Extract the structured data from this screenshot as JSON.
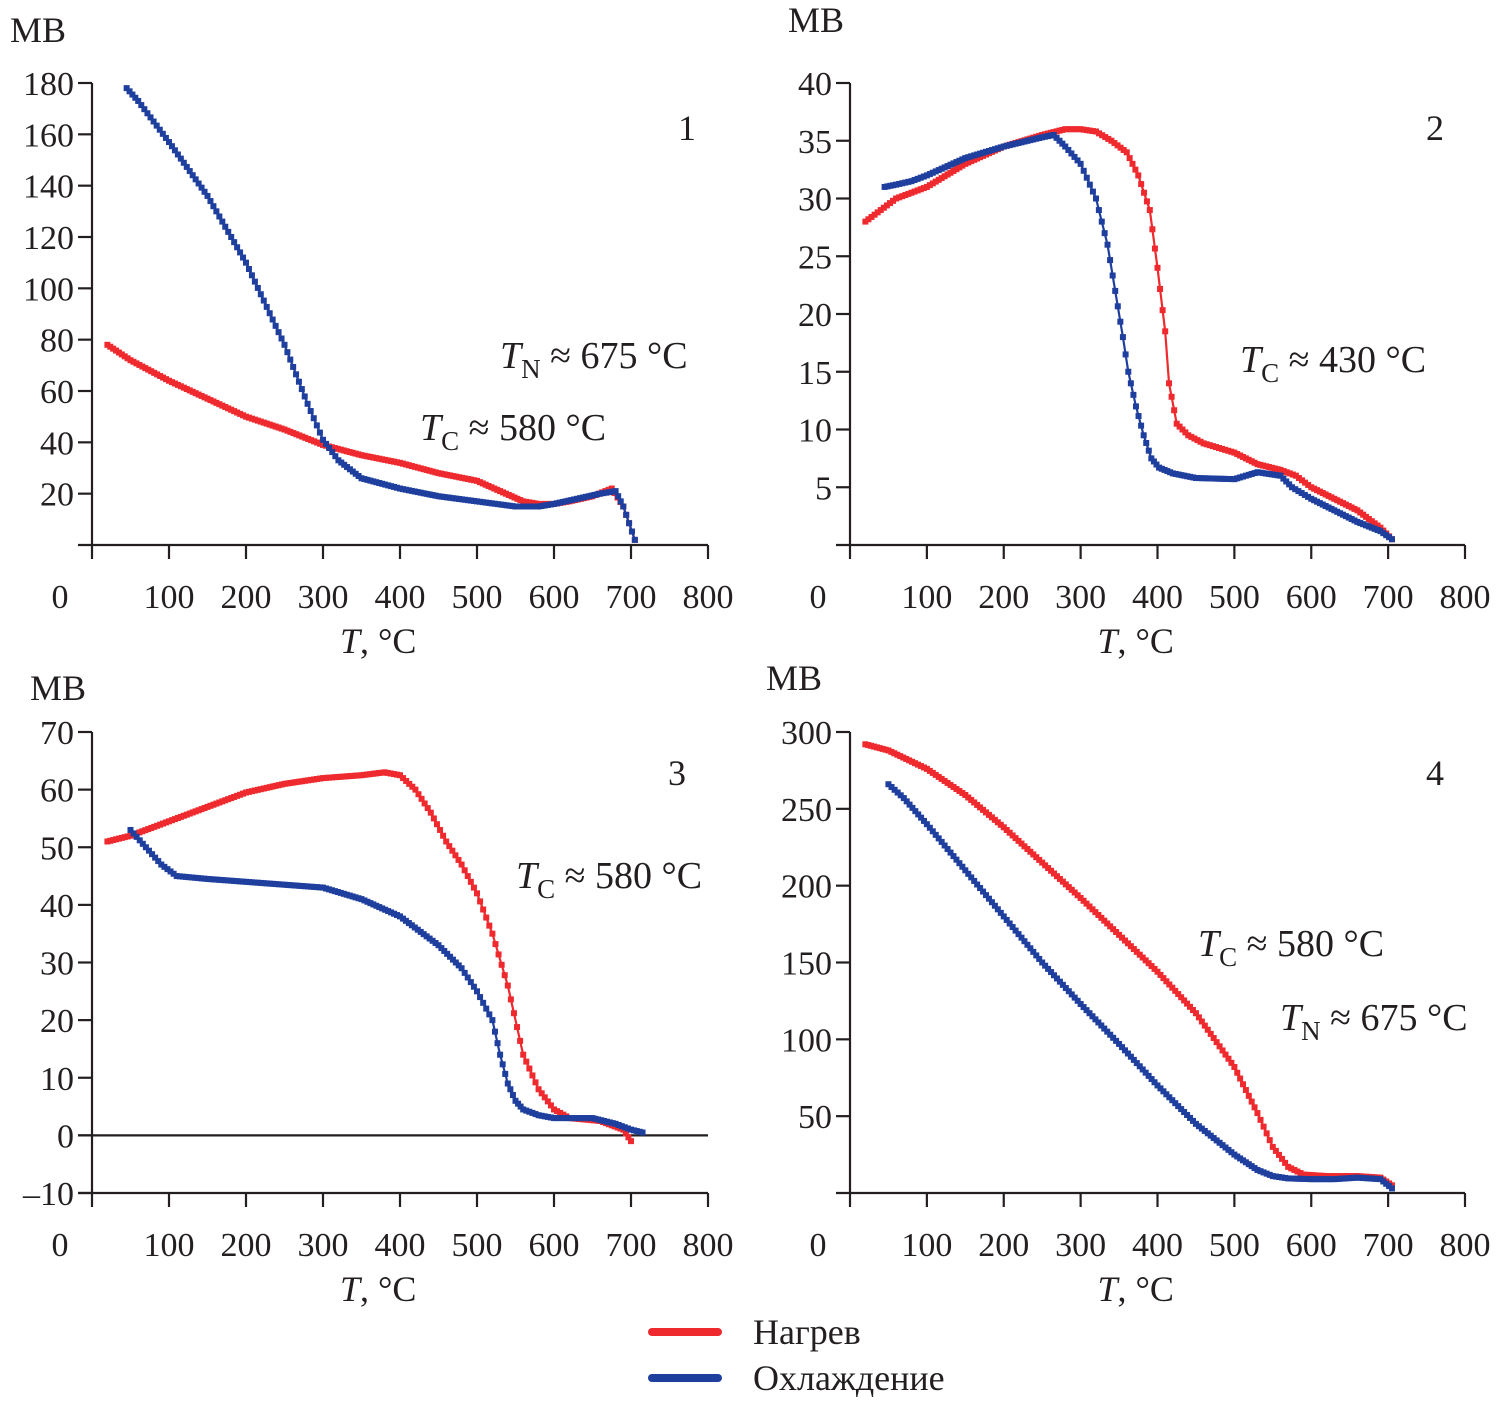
{
  "colors": {
    "heating": "#ee2a2f",
    "cooling": "#1f3f9e",
    "axis": "#231f20"
  },
  "legend": [
    {
      "label": "Нагрев",
      "series": "heating"
    },
    {
      "label": "Охлаждение",
      "series": "cooling"
    }
  ],
  "chart_data": [
    {
      "type": "line",
      "panel": "1",
      "ylabel": "MB",
      "xlabel_italic": "T",
      "xlabel_rest": ", °C",
      "xlim": [
        0,
        800
      ],
      "ylim": [
        0,
        180
      ],
      "xticks": [
        "0",
        "100",
        "200",
        "300",
        "400",
        "500",
        "600",
        "700",
        "800"
      ],
      "xtick_values": [
        0,
        100,
        200,
        300,
        400,
        500,
        600,
        700,
        800
      ],
      "yticks": [
        "20",
        "40",
        "60",
        "80",
        "100",
        "120",
        "140",
        "160",
        "180"
      ],
      "ytick_values": [
        20,
        40,
        60,
        80,
        100,
        120,
        140,
        160,
        180
      ],
      "zero_line": false,
      "annotations": [
        {
          "main": "T",
          "sub": "N",
          "rest": " ≈ 675 °C",
          "pos": "upper-right"
        },
        {
          "main": "T",
          "sub": "C",
          "rest": " ≈ 580 °C",
          "pos": "right"
        }
      ],
      "series": [
        {
          "name": "Нагрев",
          "key": "heating",
          "x": [
            20,
            50,
            100,
            150,
            200,
            250,
            300,
            350,
            400,
            450,
            500,
            530,
            560,
            580,
            600,
            620,
            650,
            675,
            690,
            705
          ],
          "y": [
            78,
            72,
            64,
            57,
            50,
            45,
            39,
            35,
            32,
            28,
            25,
            21,
            17,
            16,
            16,
            17,
            19,
            22,
            15,
            2
          ]
        },
        {
          "name": "Охлаждение",
          "key": "cooling",
          "x": [
            45,
            60,
            100,
            150,
            200,
            250,
            280,
            300,
            320,
            350,
            400,
            450,
            500,
            550,
            580,
            600,
            630,
            660,
            680,
            690,
            705
          ],
          "y": [
            178,
            173,
            157,
            136,
            110,
            78,
            55,
            41,
            33,
            26,
            22,
            19,
            17,
            15,
            15,
            16,
            18,
            20,
            21,
            15,
            2
          ]
        }
      ]
    },
    {
      "type": "line",
      "panel": "2",
      "ylabel": "MB",
      "xlabel_italic": "T",
      "xlabel_rest": ", °C",
      "xlim": [
        0,
        800
      ],
      "ylim": [
        0,
        40
      ],
      "xticks": [
        "0",
        "100",
        "200",
        "300",
        "400",
        "500",
        "600",
        "700",
        "800"
      ],
      "xtick_values": [
        0,
        100,
        200,
        300,
        400,
        500,
        600,
        700,
        800
      ],
      "yticks": [
        "5",
        "10",
        "15",
        "20",
        "25",
        "30",
        "35",
        "40"
      ],
      "ytick_values": [
        5,
        10,
        15,
        20,
        25,
        30,
        35,
        40
      ],
      "zero_line": false,
      "annotations": [
        {
          "main": "T",
          "sub": "C",
          "rest": " ≈ 430 °C",
          "pos": "right"
        }
      ],
      "series": [
        {
          "name": "Нагрев",
          "key": "heating",
          "x": [
            20,
            40,
            60,
            80,
            100,
            150,
            200,
            250,
            280,
            300,
            320,
            340,
            360,
            375,
            390,
            400,
            410,
            415,
            425,
            440,
            460,
            500,
            530,
            560,
            580,
            600,
            630,
            660,
            690,
            705
          ],
          "y": [
            28,
            29,
            30,
            30.5,
            31,
            33,
            34.5,
            35.5,
            36,
            36,
            35.8,
            35,
            34,
            32,
            29,
            24,
            18.5,
            14,
            10.5,
            9.5,
            8.8,
            8,
            7,
            6.5,
            6,
            5,
            4,
            3,
            1.5,
            0.5
          ]
        },
        {
          "name": "Охлаждение",
          "key": "cooling",
          "x": [
            45,
            60,
            80,
            100,
            150,
            200,
            250,
            265,
            280,
            300,
            320,
            335,
            345,
            355,
            362,
            372,
            382,
            392,
            402,
            420,
            450,
            500,
            530,
            560,
            575,
            600,
            630,
            660,
            690,
            705
          ],
          "y": [
            31,
            31.2,
            31.5,
            32,
            33.5,
            34.5,
            35.3,
            35.5,
            34.5,
            33,
            30,
            26,
            22,
            18,
            15,
            12,
            9.5,
            7.5,
            6.7,
            6.2,
            5.8,
            5.7,
            6.3,
            6,
            5,
            4,
            3,
            2,
            1.2,
            0.5
          ]
        }
      ]
    },
    {
      "type": "line",
      "panel": "3",
      "ylabel": "MB",
      "xlabel_italic": "T",
      "xlabel_rest": ", °C",
      "xlim": [
        0,
        800
      ],
      "ylim": [
        -10,
        70
      ],
      "xticks": [
        "0",
        "100",
        "200",
        "300",
        "400",
        "500",
        "600",
        "700",
        "800"
      ],
      "xtick_values": [
        0,
        100,
        200,
        300,
        400,
        500,
        600,
        700,
        800
      ],
      "yticks": [
        "–10",
        "0",
        "10",
        "20",
        "30",
        "40",
        "50",
        "60",
        "70"
      ],
      "ytick_values": [
        -10,
        0,
        10,
        20,
        30,
        40,
        50,
        60,
        70
      ],
      "zero_line": true,
      "annotations": [
        {
          "main": "T",
          "sub": "C",
          "rest": " ≈ 580 °C",
          "pos": "right"
        }
      ],
      "series": [
        {
          "name": "Нагрев",
          "key": "heating",
          "x": [
            20,
            50,
            100,
            150,
            200,
            250,
            300,
            350,
            380,
            400,
            420,
            440,
            460,
            480,
            500,
            520,
            540,
            560,
            580,
            600,
            620,
            660,
            690,
            700
          ],
          "y": [
            51,
            52,
            54.5,
            57,
            59.5,
            61,
            62,
            62.5,
            63,
            62.5,
            60,
            56,
            51,
            47,
            42,
            35,
            26,
            14,
            8,
            4.5,
            3,
            2.5,
            1,
            -1
          ]
        },
        {
          "name": "Охлаждение",
          "key": "cooling",
          "x": [
            50,
            70,
            90,
            110,
            150,
            200,
            250,
            300,
            350,
            400,
            450,
            480,
            500,
            520,
            530,
            540,
            550,
            560,
            580,
            600,
            650,
            680,
            700,
            715
          ],
          "y": [
            53,
            50,
            47,
            45,
            44.5,
            44,
            43.5,
            43,
            41,
            38,
            33,
            29,
            25,
            20,
            14,
            9,
            6,
            4.5,
            3.5,
            3,
            3,
            2,
            1,
            0.5
          ]
        }
      ]
    },
    {
      "type": "line",
      "panel": "4",
      "ylabel": "MB",
      "xlabel_italic": "T",
      "xlabel_rest": ", °C",
      "xlim": [
        0,
        800
      ],
      "ylim": [
        0,
        300
      ],
      "xticks": [
        "0",
        "100",
        "200",
        "300",
        "400",
        "500",
        "600",
        "700",
        "800"
      ],
      "xtick_values": [
        0,
        100,
        200,
        300,
        400,
        500,
        600,
        700,
        800
      ],
      "yticks": [
        "50",
        "100",
        "150",
        "200",
        "250",
        "300"
      ],
      "ytick_values": [
        50,
        100,
        150,
        200,
        250,
        300
      ],
      "zero_line": false,
      "annotations": [
        {
          "main": "T",
          "sub": "C",
          "rest": " ≈ 580 °C",
          "pos": "right"
        },
        {
          "main": "T",
          "sub": "N",
          "rest": " ≈ 675 °C",
          "pos": "right-lower"
        }
      ],
      "series": [
        {
          "name": "Нагрев",
          "key": "heating",
          "x": [
            20,
            50,
            100,
            150,
            200,
            250,
            300,
            350,
            400,
            450,
            500,
            530,
            550,
            570,
            590,
            620,
            660,
            690,
            705
          ],
          "y": [
            292,
            288,
            276,
            259,
            238,
            215,
            192,
            168,
            144,
            117,
            82,
            52,
            30,
            17,
            12,
            11,
            11,
            10,
            5
          ]
        },
        {
          "name": "Охлаждение",
          "key": "cooling",
          "x": [
            50,
            70,
            100,
            150,
            200,
            250,
            300,
            350,
            400,
            450,
            500,
            530,
            550,
            570,
            600,
            630,
            660,
            690,
            705
          ],
          "y": [
            266,
            257,
            240,
            210,
            180,
            150,
            123,
            97,
            70,
            45,
            25,
            15,
            11,
            9.5,
            9,
            9,
            10,
            9,
            3
          ]
        }
      ]
    }
  ]
}
